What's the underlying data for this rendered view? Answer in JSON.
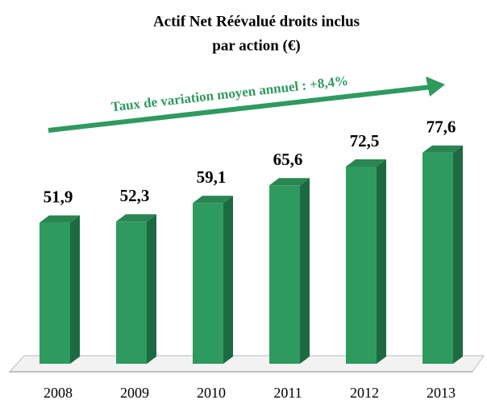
{
  "chart_data": {
    "type": "bar3d",
    "title": [
      "Actif Net Réévalué droits inclus",
      "par action (€)"
    ],
    "annotation": "Taux de variation moyen annuel : +8,4%",
    "categories": [
      "2008",
      "2009",
      "2010",
      "2011",
      "2012",
      "2013"
    ],
    "values": [
      51.9,
      52.3,
      59.1,
      65.6,
      72.5,
      77.6
    ],
    "value_labels": [
      "51,9",
      "52,3",
      "59,1",
      "65,6",
      "72,5",
      "77,6"
    ],
    "color": "#2f9a5f"
  }
}
